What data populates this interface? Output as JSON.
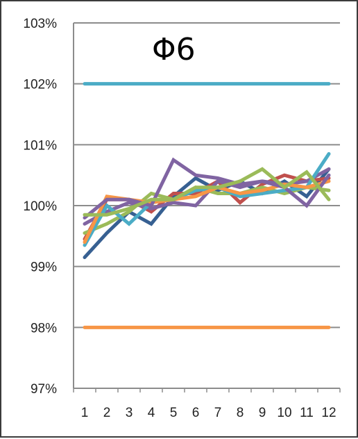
{
  "chart_data": {
    "type": "line",
    "title": "Φ6",
    "xlabel": "",
    "ylabel": "",
    "categories": [
      "1",
      "2",
      "3",
      "4",
      "5",
      "6",
      "7",
      "8",
      "9",
      "10",
      "11",
      "12"
    ],
    "ylim": [
      97,
      103
    ],
    "y_ticks": [
      "97%",
      "98%",
      "99%",
      "100%",
      "101%",
      "102%",
      "103%"
    ],
    "grid": "horizontal",
    "legend": "none",
    "reference_lines": [
      {
        "value": 102.0,
        "color": "#4bacc6"
      },
      {
        "value": 98.0,
        "color": "#f79646"
      }
    ],
    "series": [
      {
        "color": "#376092",
        "values": [
          99.15,
          99.55,
          99.9,
          99.7,
          100.15,
          100.45,
          100.25,
          100.4,
          100.2,
          100.4,
          100.15,
          100.6
        ]
      },
      {
        "color": "#c0504d",
        "values": [
          99.45,
          100.1,
          100.1,
          99.9,
          100.2,
          100.2,
          100.4,
          100.05,
          100.35,
          100.5,
          100.4,
          100.45
        ]
      },
      {
        "color": "#9bbb59",
        "values": [
          99.55,
          99.7,
          99.9,
          100.2,
          100.1,
          100.3,
          100.2,
          100.2,
          100.3,
          100.2,
          100.3,
          100.25
        ]
      },
      {
        "color": "#8064a2",
        "values": [
          99.7,
          99.9,
          100.05,
          99.95,
          100.05,
          100.0,
          100.4,
          100.3,
          100.4,
          100.35,
          100.4,
          100.6
        ]
      },
      {
        "color": "#4bacc6",
        "values": [
          99.35,
          100.0,
          99.7,
          100.05,
          100.1,
          100.25,
          100.3,
          100.15,
          100.2,
          100.25,
          100.3,
          100.85
        ]
      },
      {
        "color": "#f79646",
        "values": [
          99.4,
          100.15,
          100.1,
          100.05,
          100.1,
          100.15,
          100.3,
          100.2,
          100.25,
          100.35,
          100.3,
          100.4
        ]
      },
      {
        "color": "#8064a2",
        "values": [
          99.8,
          100.1,
          100.1,
          100.0,
          100.75,
          100.5,
          100.45,
          100.35,
          100.4,
          100.3,
          100.0,
          100.5
        ]
      },
      {
        "color": "#9bbb59",
        "values": [
          99.85,
          99.85,
          99.95,
          100.1,
          100.1,
          100.3,
          100.3,
          100.4,
          100.6,
          100.3,
          100.55,
          100.1
        ]
      }
    ]
  }
}
